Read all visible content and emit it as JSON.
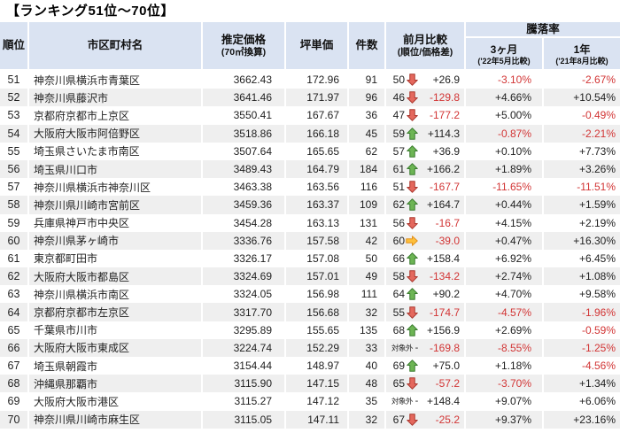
{
  "title": "【ランキング51位～70位】",
  "header": {
    "rank": "順位",
    "city": "市区町村名",
    "price_line1": "推定価格",
    "price_line2": "(70㎡換算)",
    "tsubo": "坪単価",
    "count": "件数",
    "prev_line1": "前月比較",
    "prev_line2": "(順位/価格差)",
    "change_group": "騰落率",
    "m3_line1": "3ヶ月",
    "m3_line2": "('22年5月比較)",
    "y1_line1": "1年",
    "y1_line2": "('21年8月比較)"
  },
  "colors": {
    "header_bg": "#dae3f2",
    "stripe_bg": "#efefef",
    "negative_text": "#d23535",
    "arrow_down_fill": "#e4685d",
    "arrow_down_stroke": "#ab382f",
    "arrow_up_fill": "#6db554",
    "arrow_up_stroke": "#3c7d30",
    "arrow_right_fill": "#fdbf3b",
    "arrow_right_stroke": "#e2911d",
    "no_change_dash": "-"
  },
  "chart_data": {
    "type": "table",
    "title": "【ランキング51位～70位】",
    "columns": [
      "順位",
      "市区町村名",
      "推定価格(70㎡換算)",
      "坪単価",
      "件数",
      "前月比較(順位/価格差)",
      "騰落率 3ヶ月('22年5月比較)",
      "騰落率 1年('21年8月比較)"
    ],
    "rows": [
      {
        "rank": "51",
        "city": "神奈川県横浜市青葉区",
        "price": "3662.43",
        "tsubo": "172.96",
        "count": "91",
        "prev_rank": "50",
        "arrow": "down",
        "diff": "+26.9",
        "m3": "-3.10%",
        "y1": "-2.67%"
      },
      {
        "rank": "52",
        "city": "神奈川県藤沢市",
        "price": "3641.46",
        "tsubo": "171.97",
        "count": "96",
        "prev_rank": "46",
        "arrow": "down",
        "diff": "-129.8",
        "m3": "+4.66%",
        "y1": "+10.54%"
      },
      {
        "rank": "53",
        "city": "京都府京都市上京区",
        "price": "3550.41",
        "tsubo": "167.67",
        "count": "36",
        "prev_rank": "47",
        "arrow": "down",
        "diff": "-177.2",
        "m3": "+5.00%",
        "y1": "-0.49%"
      },
      {
        "rank": "54",
        "city": "大阪府大阪市阿倍野区",
        "price": "3518.86",
        "tsubo": "166.18",
        "count": "45",
        "prev_rank": "59",
        "arrow": "up",
        "diff": "+114.3",
        "m3": "-0.87%",
        "y1": "-2.21%"
      },
      {
        "rank": "55",
        "city": "埼玉県さいたま市南区",
        "price": "3507.64",
        "tsubo": "165.65",
        "count": "62",
        "prev_rank": "57",
        "arrow": "up",
        "diff": "+36.9",
        "m3": "+0.10%",
        "y1": "+7.73%"
      },
      {
        "rank": "56",
        "city": "埼玉県川口市",
        "price": "3489.43",
        "tsubo": "164.79",
        "count": "184",
        "prev_rank": "61",
        "arrow": "up",
        "diff": "+166.2",
        "m3": "+1.89%",
        "y1": "+3.26%"
      },
      {
        "rank": "57",
        "city": "神奈川県横浜市神奈川区",
        "price": "3463.38",
        "tsubo": "163.56",
        "count": "116",
        "prev_rank": "51",
        "arrow": "down",
        "diff": "-167.7",
        "m3": "-11.65%",
        "y1": "-11.51%"
      },
      {
        "rank": "58",
        "city": "神奈川県川崎市宮前区",
        "price": "3459.36",
        "tsubo": "163.37",
        "count": "109",
        "prev_rank": "62",
        "arrow": "up",
        "diff": "+164.7",
        "m3": "+0.44%",
        "y1": "+1.59%"
      },
      {
        "rank": "59",
        "city": "兵庫県神戸市中央区",
        "price": "3454.28",
        "tsubo": "163.13",
        "count": "131",
        "prev_rank": "56",
        "arrow": "down",
        "diff": "-16.7",
        "m3": "+4.15%",
        "y1": "+2.19%"
      },
      {
        "rank": "60",
        "city": "神奈川県茅ヶ崎市",
        "price": "3336.76",
        "tsubo": "157.58",
        "count": "42",
        "prev_rank": "60",
        "arrow": "right",
        "diff": "-39.0",
        "m3": "+0.47%",
        "y1": "+16.30%"
      },
      {
        "rank": "61",
        "city": "東京都町田市",
        "price": "3326.17",
        "tsubo": "157.08",
        "count": "50",
        "prev_rank": "66",
        "arrow": "up",
        "diff": "+158.4",
        "m3": "+6.92%",
        "y1": "+6.45%"
      },
      {
        "rank": "62",
        "city": "大阪府大阪市都島区",
        "price": "3324.69",
        "tsubo": "157.01",
        "count": "49",
        "prev_rank": "58",
        "arrow": "down",
        "diff": "-134.2",
        "m3": "+2.74%",
        "y1": "+1.08%"
      },
      {
        "rank": "63",
        "city": "神奈川県横浜市南区",
        "price": "3324.05",
        "tsubo": "156.98",
        "count": "111",
        "prev_rank": "64",
        "arrow": "up",
        "diff": "+90.2",
        "m3": "+4.70%",
        "y1": "+9.58%"
      },
      {
        "rank": "64",
        "city": "京都府京都市左京区",
        "price": "3317.70",
        "tsubo": "156.68",
        "count": "32",
        "prev_rank": "55",
        "arrow": "down",
        "diff": "-174.7",
        "m3": "-4.57%",
        "y1": "-1.96%"
      },
      {
        "rank": "65",
        "city": "千葉県市川市",
        "price": "3295.89",
        "tsubo": "155.65",
        "count": "135",
        "prev_rank": "68",
        "arrow": "up",
        "diff": "+156.9",
        "m3": "+2.69%",
        "y1": "-0.59%"
      },
      {
        "rank": "66",
        "city": "大阪府大阪市東成区",
        "price": "3224.74",
        "tsubo": "152.29",
        "count": "33",
        "prev_rank": "対象外",
        "arrow": "dash",
        "diff": "-169.8",
        "m3": "-8.55%",
        "y1": "-1.25%"
      },
      {
        "rank": "67",
        "city": "埼玉県朝霞市",
        "price": "3154.44",
        "tsubo": "148.97",
        "count": "40",
        "prev_rank": "69",
        "arrow": "up",
        "diff": "+75.0",
        "m3": "+1.18%",
        "y1": "-4.56%"
      },
      {
        "rank": "68",
        "city": "沖縄県那覇市",
        "price": "3115.90",
        "tsubo": "147.15",
        "count": "48",
        "prev_rank": "65",
        "arrow": "down",
        "diff": "-57.2",
        "m3": "-3.70%",
        "y1": "+1.34%"
      },
      {
        "rank": "69",
        "city": "大阪府大阪市港区",
        "price": "3115.27",
        "tsubo": "147.12",
        "count": "35",
        "prev_rank": "対象外",
        "arrow": "dash",
        "diff": "+148.4",
        "m3": "+9.07%",
        "y1": "+6.06%"
      },
      {
        "rank": "70",
        "city": "神奈川県川崎市麻生区",
        "price": "3115.05",
        "tsubo": "147.11",
        "count": "32",
        "prev_rank": "67",
        "arrow": "down",
        "diff": "-25.2",
        "m3": "+9.37%",
        "y1": "+23.16%"
      }
    ]
  }
}
